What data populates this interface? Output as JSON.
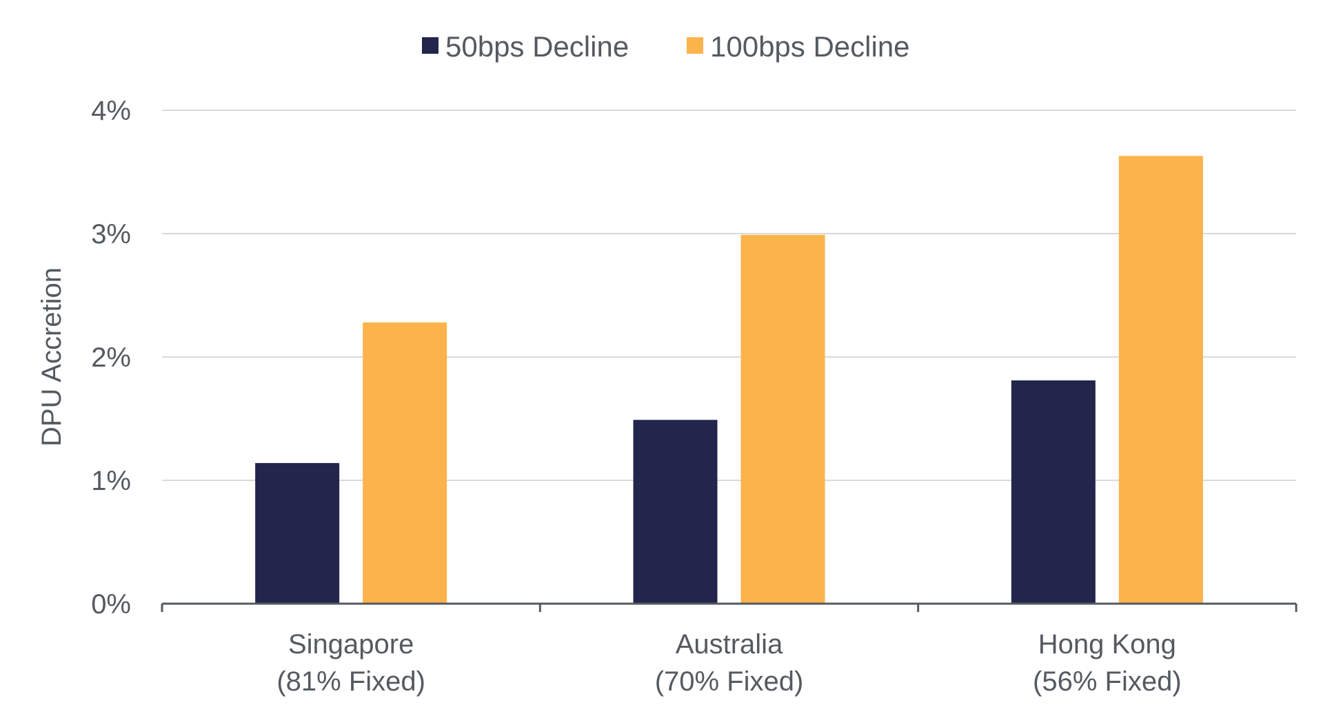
{
  "chart_data": {
    "type": "bar",
    "categories": [
      [
        "Singapore",
        "(81% Fixed)"
      ],
      [
        "Australia",
        "(70% Fixed)"
      ],
      [
        "Hong Kong",
        "(56% Fixed)"
      ]
    ],
    "series": [
      {
        "name": "50bps Decline",
        "color": "#22264d",
        "values": [
          1.14,
          1.49,
          1.81
        ]
      },
      {
        "name": "100bps Decline",
        "color": "#fdb34b",
        "values": [
          2.28,
          2.99,
          3.63
        ]
      }
    ],
    "ylabel": "DPU Accretion",
    "ylim": [
      0,
      4
    ],
    "yticks": [
      0,
      1,
      2,
      3,
      4
    ],
    "ytick_labels": [
      "0%",
      "1%",
      "2%",
      "3%",
      "4%"
    ],
    "grid": true,
    "legend_position": "top-center"
  }
}
